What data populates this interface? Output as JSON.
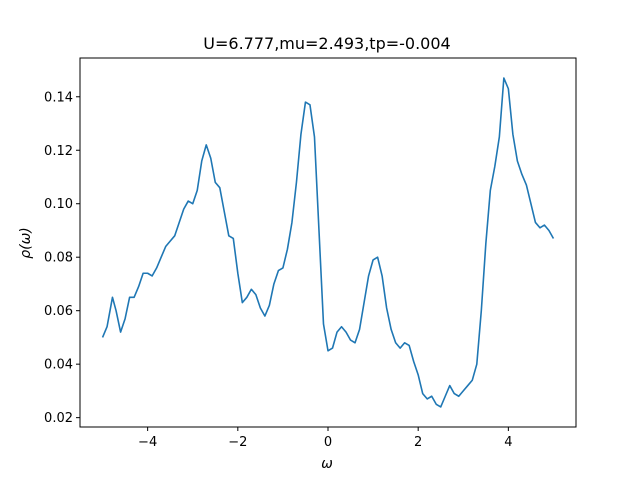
{
  "chart_data": {
    "type": "line",
    "title": "U=6.777,mu=2.493,tp=-0.004",
    "xlabel": "ω",
    "ylabel": "ρ(ω)",
    "xlim": [
      -5.5,
      5.5
    ],
    "ylim": [
      0.0165,
      0.1545
    ],
    "x_ticks": [
      -4,
      -2,
      0,
      2,
      4
    ],
    "x_tick_labels": [
      "−4",
      "−2",
      "0",
      "2",
      "4"
    ],
    "y_ticks": [
      0.02,
      0.04,
      0.06,
      0.08,
      0.1,
      0.12,
      0.14
    ],
    "y_tick_labels": [
      "0.02",
      "0.04",
      "0.06",
      "0.08",
      "0.10",
      "0.12",
      "0.14"
    ],
    "grid": false,
    "series": [
      {
        "color": "#1f77b4",
        "points": [
          [
            -5.0,
            0.05
          ],
          [
            -4.9,
            0.054
          ],
          [
            -4.78,
            0.065
          ],
          [
            -4.7,
            0.06
          ],
          [
            -4.6,
            0.052
          ],
          [
            -4.5,
            0.057
          ],
          [
            -4.4,
            0.065
          ],
          [
            -4.3,
            0.065
          ],
          [
            -4.2,
            0.069
          ],
          [
            -4.1,
            0.074
          ],
          [
            -4.0,
            0.074
          ],
          [
            -3.9,
            0.073
          ],
          [
            -3.8,
            0.076
          ],
          [
            -3.7,
            0.08
          ],
          [
            -3.6,
            0.084
          ],
          [
            -3.5,
            0.086
          ],
          [
            -3.4,
            0.088
          ],
          [
            -3.3,
            0.093
          ],
          [
            -3.2,
            0.098
          ],
          [
            -3.1,
            0.101
          ],
          [
            -3.0,
            0.1
          ],
          [
            -2.9,
            0.105
          ],
          [
            -2.8,
            0.116
          ],
          [
            -2.7,
            0.122
          ],
          [
            -2.6,
            0.117
          ],
          [
            -2.5,
            0.108
          ],
          [
            -2.4,
            0.106
          ],
          [
            -2.3,
            0.097
          ],
          [
            -2.2,
            0.088
          ],
          [
            -2.1,
            0.087
          ],
          [
            -2.0,
            0.074
          ],
          [
            -1.9,
            0.063
          ],
          [
            -1.8,
            0.065
          ],
          [
            -1.7,
            0.068
          ],
          [
            -1.6,
            0.066
          ],
          [
            -1.5,
            0.061
          ],
          [
            -1.4,
            0.058
          ],
          [
            -1.3,
            0.062
          ],
          [
            -1.2,
            0.07
          ],
          [
            -1.1,
            0.075
          ],
          [
            -1.0,
            0.076
          ],
          [
            -0.9,
            0.083
          ],
          [
            -0.8,
            0.093
          ],
          [
            -0.7,
            0.108
          ],
          [
            -0.6,
            0.126
          ],
          [
            -0.5,
            0.138
          ],
          [
            -0.4,
            0.137
          ],
          [
            -0.3,
            0.125
          ],
          [
            -0.2,
            0.09
          ],
          [
            -0.1,
            0.055
          ],
          [
            0.0,
            0.045
          ],
          [
            0.1,
            0.046
          ],
          [
            0.2,
            0.052
          ],
          [
            0.3,
            0.054
          ],
          [
            0.4,
            0.052
          ],
          [
            0.5,
            0.049
          ],
          [
            0.6,
            0.048
          ],
          [
            0.7,
            0.053
          ],
          [
            0.8,
            0.063
          ],
          [
            0.9,
            0.073
          ],
          [
            1.0,
            0.079
          ],
          [
            1.1,
            0.08
          ],
          [
            1.2,
            0.073
          ],
          [
            1.3,
            0.061
          ],
          [
            1.4,
            0.053
          ],
          [
            1.5,
            0.048
          ],
          [
            1.6,
            0.046
          ],
          [
            1.7,
            0.048
          ],
          [
            1.8,
            0.047
          ],
          [
            1.9,
            0.041
          ],
          [
            2.0,
            0.036
          ],
          [
            2.1,
            0.029
          ],
          [
            2.2,
            0.027
          ],
          [
            2.3,
            0.028
          ],
          [
            2.4,
            0.025
          ],
          [
            2.5,
            0.024
          ],
          [
            2.6,
            0.028
          ],
          [
            2.7,
            0.032
          ],
          [
            2.8,
            0.029
          ],
          [
            2.9,
            0.028
          ],
          [
            3.0,
            0.03
          ],
          [
            3.1,
            0.032
          ],
          [
            3.2,
            0.034
          ],
          [
            3.3,
            0.04
          ],
          [
            3.4,
            0.06
          ],
          [
            3.5,
            0.085
          ],
          [
            3.6,
            0.105
          ],
          [
            3.7,
            0.114
          ],
          [
            3.8,
            0.125
          ],
          [
            3.9,
            0.147
          ],
          [
            4.0,
            0.143
          ],
          [
            4.1,
            0.126
          ],
          [
            4.2,
            0.116
          ],
          [
            4.3,
            0.111
          ],
          [
            4.4,
            0.107
          ],
          [
            4.5,
            0.1
          ],
          [
            4.6,
            0.093
          ],
          [
            4.7,
            0.091
          ],
          [
            4.8,
            0.092
          ],
          [
            4.9,
            0.09
          ],
          [
            5.0,
            0.087
          ]
        ]
      }
    ]
  }
}
